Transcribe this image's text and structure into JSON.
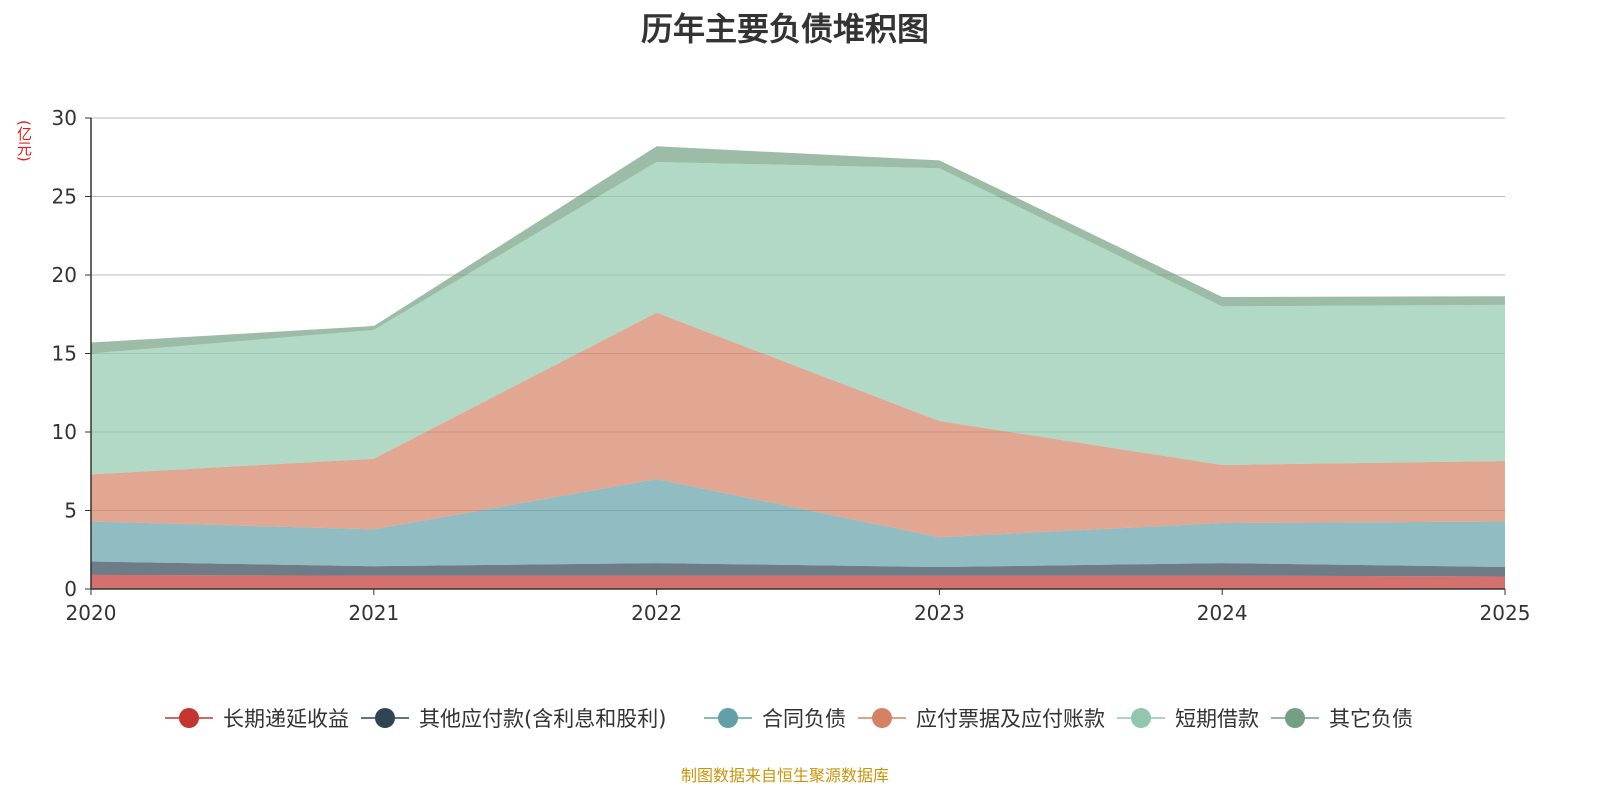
{
  "chart_data": {
    "type": "area",
    "stacked": true,
    "title": "历年主要负债堆积图",
    "ylabel": "(亿元)",
    "x": [
      "2020",
      "2021",
      "2022",
      "2023",
      "2024",
      "2025"
    ],
    "ylim": [
      0,
      30
    ],
    "yticks": [
      0,
      5,
      10,
      15,
      20,
      25,
      30
    ],
    "grid": true,
    "legend_position": "bottom",
    "series": [
      {
        "name": "长期递延收益",
        "color": "#c23531",
        "values": [
          0.9,
          0.85,
          0.85,
          0.85,
          0.85,
          0.8
        ]
      },
      {
        "name": "其他应付款(含利息和股利)",
        "color": "#2f4554",
        "values": [
          0.85,
          0.6,
          0.8,
          0.55,
          0.8,
          0.6
        ]
      },
      {
        "name": "合同负债",
        "color": "#61a0a8",
        "values": [
          2.55,
          2.35,
          5.35,
          1.9,
          2.55,
          2.9
        ]
      },
      {
        "name": "应付票据及应付账款",
        "color": "#d48265",
        "values": [
          3.0,
          4.5,
          10.6,
          7.4,
          3.7,
          3.85
        ]
      },
      {
        "name": "短期借款",
        "color": "#91c7ae",
        "values": [
          7.7,
          8.2,
          9.6,
          16.1,
          10.1,
          9.95
        ]
      },
      {
        "name": "其它负债",
        "color": "#749f83",
        "values": [
          0.7,
          0.25,
          1.0,
          0.5,
          0.6,
          0.55
        ]
      }
    ]
  },
  "footer": "制图数据来自恒生聚源数据库"
}
